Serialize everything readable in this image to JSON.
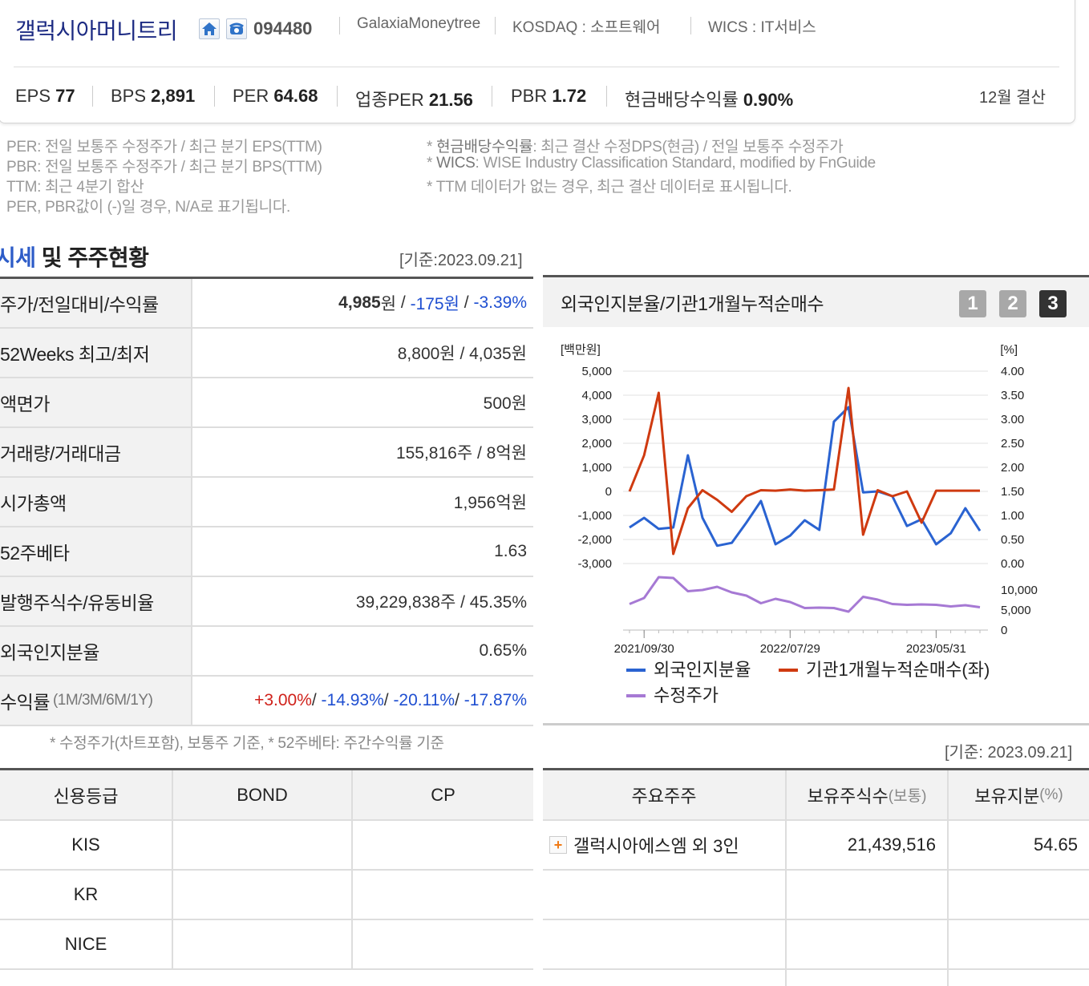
{
  "company": {
    "name": "갤럭시아머니트리",
    "code": "094480",
    "eng_name": "GalaxiaMoneytree",
    "market": "KOSDAQ : 소프트웨어",
    "wics": "WICS : IT서비스",
    "home_icon": "home-icon",
    "ir_icon": "phone-icon"
  },
  "metrics": [
    {
      "label": "EPS",
      "value": "77"
    },
    {
      "label": "BPS",
      "value": "2,891"
    },
    {
      "label": "PER",
      "value": "64.68"
    },
    {
      "label": "업종PER",
      "value": "21.56"
    },
    {
      "label": "PBR",
      "value": "1.72"
    },
    {
      "label": "현금배당수익률",
      "value": "0.90%"
    }
  ],
  "settlement": "12월 결산",
  "notes": {
    "left": [
      "PER: 전일 보통주 수정주가 / 최근 분기 EPS(TTM)",
      "PBR: 전일 보통주 수정주가 / 최근 분기 BPS(TTM)",
      "TTM: 최근 4분기 합산",
      "PER, PBR값이 (-)일 경우, N/A로 표기됩니다."
    ],
    "right": [
      {
        "term": "현금배당수익률",
        "text": ": 최근 결산 수정DPS(현금) / 전일 보통주 수정주가"
      },
      {
        "term": "WICS",
        "text": ": WISE Industry Classification Standard, modified by FnGuide"
      },
      {
        "term": "",
        "text": "TTM 데이터가 없는 경우, 최근 결산 데이터로 표시됩니다."
      }
    ],
    "bullet": "*"
  },
  "section": {
    "title_highlight": "시세",
    "title_rest": " 및 주주현황",
    "basis": "[기준:2023.09.21]"
  },
  "price_table": {
    "price_label": "주가/전일대비/수익률",
    "price": "4,985",
    "won": "원",
    "change": "-175원",
    "change_pct": "-3.39%",
    "sep": " / ",
    "rows": [
      {
        "label": "52Weeks 최고/최저",
        "value": "8,800원 / 4,035원"
      },
      {
        "label": "액면가",
        "value": "500원"
      },
      {
        "label": "거래량/거래대금",
        "value": "155,816주 / 8억원"
      },
      {
        "label": "시가총액",
        "value": "1,956억원"
      },
      {
        "label": "52주베타",
        "value": "1.63"
      },
      {
        "label": "발행주식수/유동비율",
        "value": "39,229,838주 / 45.35%"
      },
      {
        "label": "외국인지분율",
        "value": "0.65%"
      }
    ],
    "return_label": "수익률",
    "return_periods": "(1M/3M/6M/1Y)",
    "returns": [
      "+3.00%",
      "-14.93%",
      "-20.11%",
      "-17.87%"
    ],
    "return_sep": "/ "
  },
  "footnote": "* 수정주가(차트포함), 보통주 기준, * 52주베타: 주간수익률 기준",
  "chart_panel": {
    "title": "외국인지분율/기관1개월누적순매수",
    "tabs": [
      "1",
      "2",
      "3"
    ],
    "active_tab": "3"
  },
  "chart_data": {
    "type": "line",
    "left_unit": "[백만원]",
    "right_unit": "[%]",
    "left_axis": {
      "ticks": [
        "5,000",
        "4,000",
        "3,000",
        "2,000",
        "1,000",
        "0",
        "-1,000",
        "-2,000",
        "-3,000"
      ],
      "range": [
        -3000,
        5000
      ]
    },
    "right_axis": {
      "ticks": [
        "4.00",
        "3.50",
        "3.00",
        "2.50",
        "2.00",
        "1.50",
        "1.00",
        "0.50",
        "0.00"
      ],
      "range": [
        0,
        4
      ]
    },
    "price_axis": {
      "ticks": [
        "10,000",
        "5,000",
        "0"
      ],
      "range": [
        0,
        10000
      ]
    },
    "x_ticks": [
      "2021/09/30",
      "2022/07/29",
      "2023/05/31"
    ],
    "x_tick_index": [
      1,
      11,
      21
    ],
    "series": [
      {
        "name": "외국인지분율",
        "color": "#2a63d1",
        "axis": "right",
        "values": [
          0.75,
          0.95,
          0.72,
          0.75,
          2.25,
          0.95,
          0.37,
          0.43,
          0.85,
          1.3,
          0.4,
          0.58,
          0.9,
          0.7,
          2.95,
          3.25,
          1.48,
          1.5,
          1.4,
          0.78,
          0.92,
          0.4,
          0.63,
          1.15,
          0.68
        ],
        "label_ypos": "right"
      },
      {
        "name": "기관1개월누적순매수(좌)",
        "color": "#cf3a10",
        "axis": "left",
        "values": [
          0,
          1500,
          4100,
          -2600,
          -700,
          50,
          -350,
          -850,
          -200,
          50,
          30,
          80,
          30,
          50,
          80,
          4300,
          -1800,
          50,
          -200,
          0,
          -1300,
          30,
          30,
          30,
          30
        ]
      },
      {
        "name": "수정주가",
        "color": "#a679d4",
        "axis": "price",
        "values": [
          6500,
          8000,
          13200,
          13000,
          9700,
          10000,
          10800,
          9400,
          8600,
          6700,
          7800,
          7000,
          5500,
          5600,
          5500,
          4600,
          8300,
          7600,
          6500,
          6300,
          6400,
          6300,
          5900,
          6200,
          5700
        ]
      }
    ]
  },
  "credit_table": {
    "headers": [
      "신용등급",
      "BOND",
      "CP"
    ],
    "rows": [
      [
        "KIS",
        "",
        ""
      ],
      [
        "KR",
        "",
        ""
      ],
      [
        "NICE",
        "",
        ""
      ]
    ]
  },
  "shareholder_table": {
    "basis": "[기준: 2023.09.21]",
    "headers": {
      "holder": "주요주주",
      "shares": "보유주식수",
      "shares_unit": "(보통)",
      "stake": "보유지분",
      "stake_unit": "(%)"
    },
    "rows": [
      {
        "name": "갤럭시아에스엠 외 3인",
        "shares": "21,439,516",
        "stake": "54.65",
        "expand_icon": "plus-icon"
      }
    ]
  }
}
